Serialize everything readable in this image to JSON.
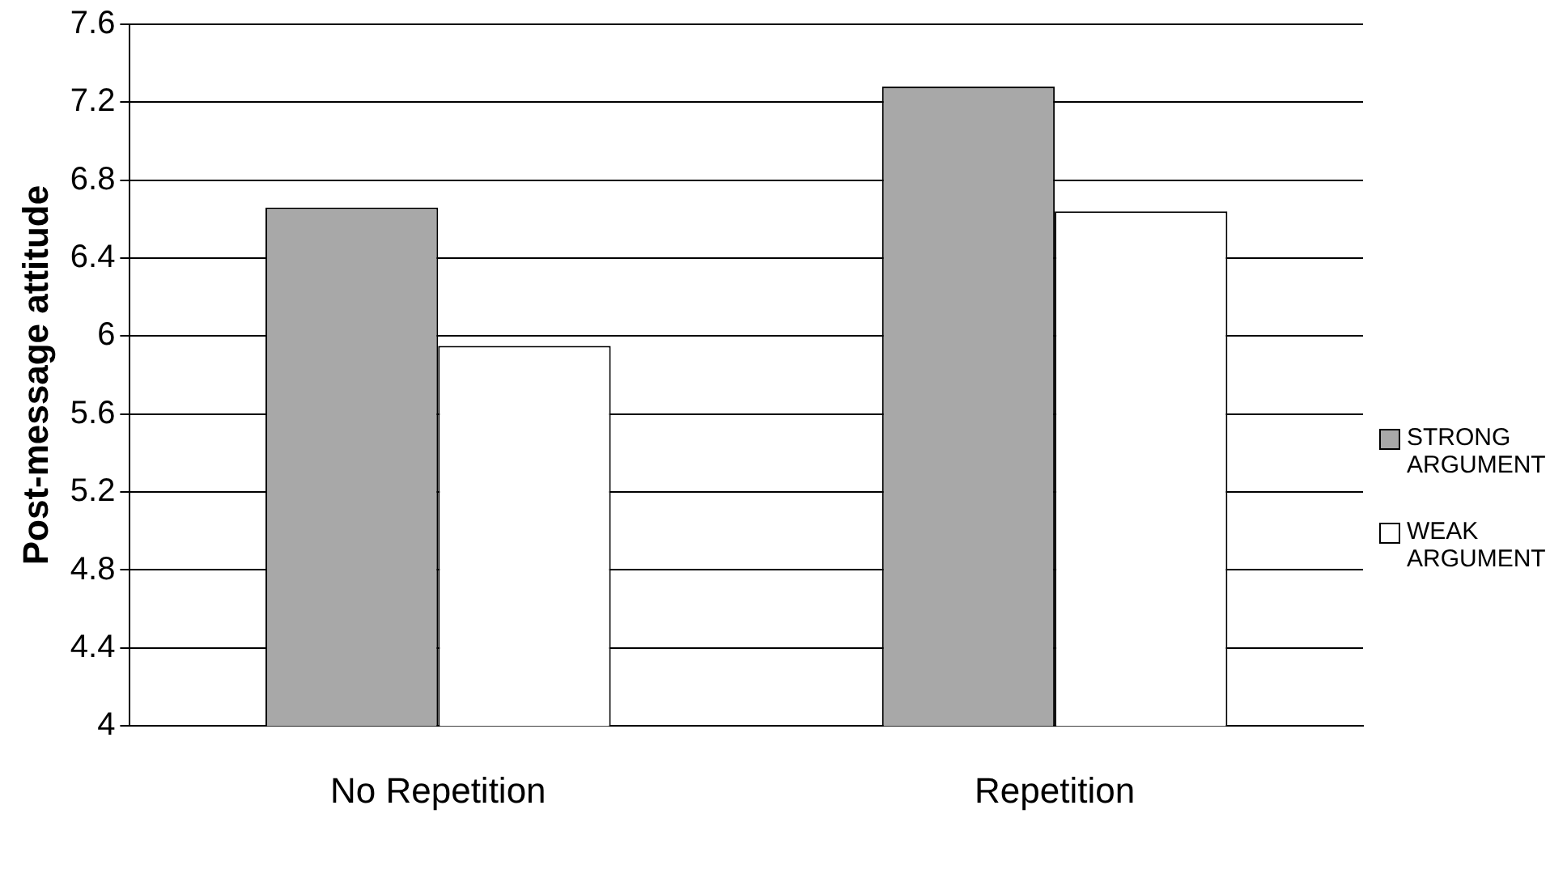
{
  "chart_data": {
    "type": "bar",
    "ylabel": "Post-message attitude",
    "categories": [
      "No Repetition",
      "Repetition"
    ],
    "series": [
      {
        "name": "STRONG ARGUMENT",
        "color": "#a8a8a8",
        "values": [
          6.66,
          7.28
        ]
      },
      {
        "name": "WEAK ARGUMENT",
        "color": "#ffffff",
        "values": [
          5.95,
          6.64
        ]
      }
    ],
    "ylim": [
      4,
      7.6
    ],
    "yticks": [
      4,
      4.4,
      4.8,
      5.2,
      5.6,
      6,
      6.4,
      6.8,
      7.2,
      7.6
    ],
    "grid": "y",
    "legend": "right"
  }
}
